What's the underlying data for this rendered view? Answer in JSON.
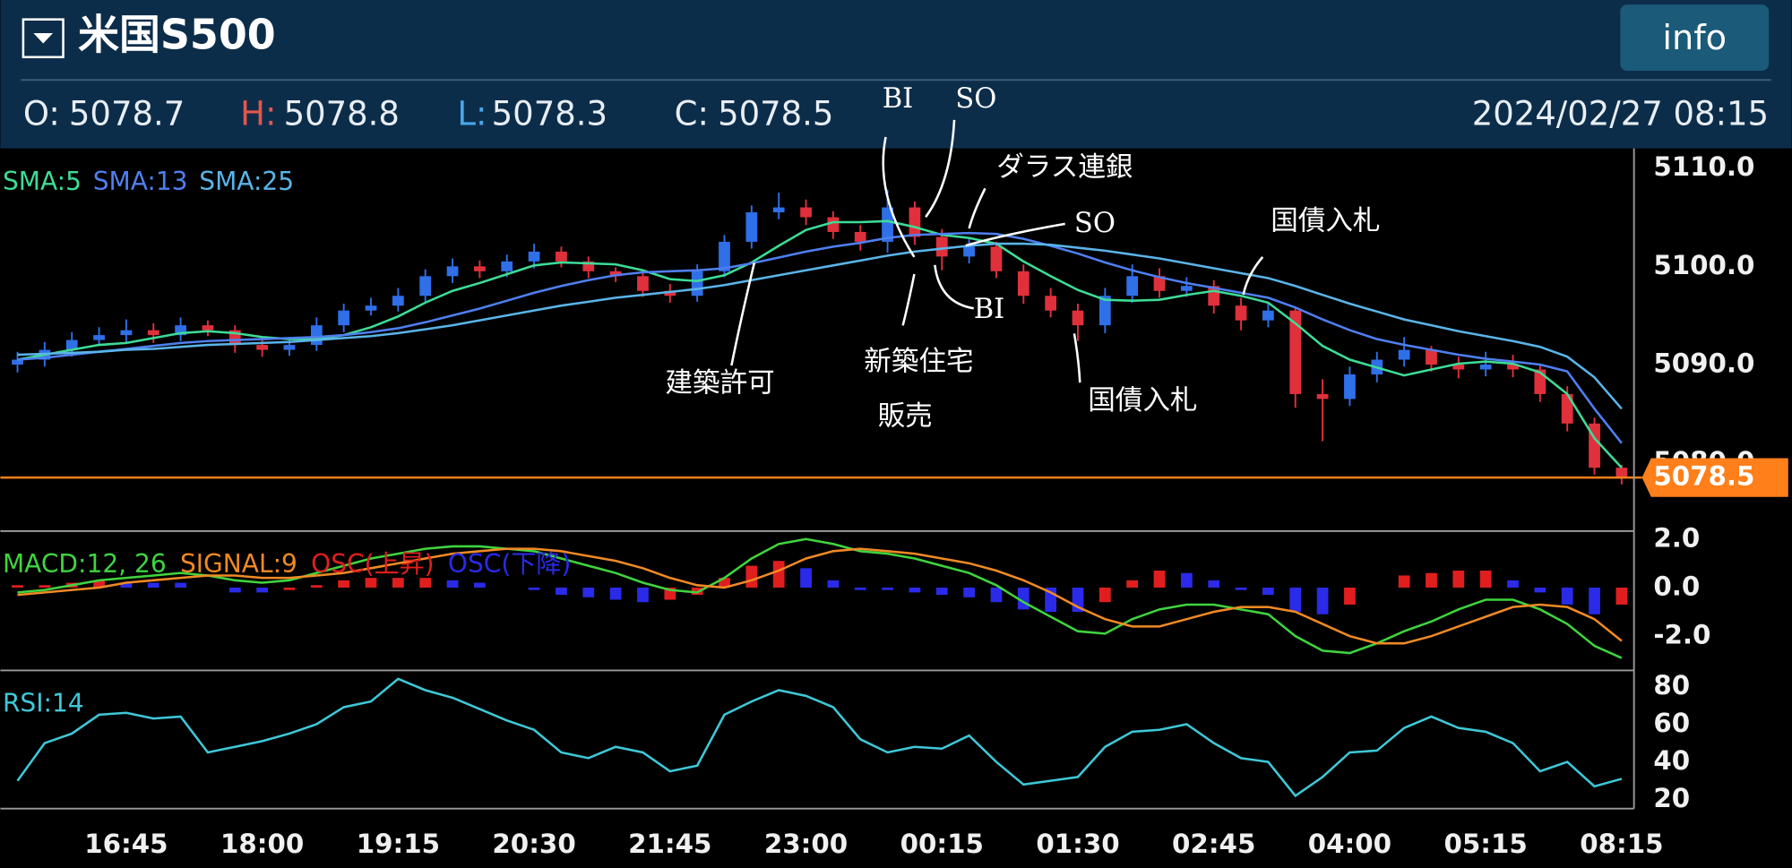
{
  "header": {
    "title": "米国S500",
    "open_label": "O:",
    "open": 5078.7,
    "high_label": "H:",
    "high": 5078.8,
    "low_label": "L:",
    "low": 5078.3,
    "close_label": "C:",
    "close": 5078.5,
    "datetime": "2024/02/27 08:15",
    "button": "info"
  },
  "chart_data": [
    {
      "type": "candlestick",
      "ylim": [
        5073.4,
        5112.0
      ],
      "yticks": [
        {
          "value": 5110,
          "label": "5110.0"
        },
        {
          "value": 5100,
          "label": "5100.0"
        },
        {
          "value": 5090,
          "label": "5090.0"
        },
        {
          "value": 5080,
          "label": "5080.0"
        }
      ],
      "grid": true,
      "up_color": "#2f6fe8",
      "down_color": "#e0303c",
      "last_price": 5078.5,
      "last_price_color": "#ff7f1a",
      "ohlc": {
        "open": [
          5090.0,
          5090.5,
          5091.5,
          5092.5,
          5093.0,
          5093.5,
          5093.0,
          5094.0,
          5093.5,
          5092.0,
          5091.5,
          5092.0,
          5094.0,
          5095.5,
          5096.0,
          5097.0,
          5099.0,
          5100.0,
          5099.5,
          5100.5,
          5101.5,
          5100.5,
          5099.5,
          5099.0,
          5097.5,
          5097.0,
          5099.5,
          5102.5,
          5105.5,
          5106.0,
          5105.0,
          5103.5,
          5102.5,
          5106.0,
          5103.0,
          5101.0,
          5102.0,
          5099.5,
          5097.0,
          5095.5,
          5094.0,
          5097.0,
          5099.0,
          5097.5,
          5098.0,
          5096.0,
          5094.5,
          5095.5,
          5087.0,
          5086.5,
          5089.0,
          5090.5,
          5091.5,
          5090.0,
          5089.5,
          5090.0,
          5089.5,
          5087.0,
          5084.0,
          5079.5
        ],
        "high": [
          5091.3,
          5092.3,
          5093.3,
          5093.8,
          5094.6,
          5094.2,
          5094.8,
          5094.5,
          5094.0,
          5092.7,
          5092.8,
          5094.8,
          5096.2,
          5096.8,
          5097.8,
          5099.7,
          5100.8,
          5100.6,
          5101.2,
          5102.3,
          5102.0,
          5101.0,
          5099.9,
          5099.6,
          5098.2,
          5100.2,
          5103.2,
          5106.2,
          5107.5,
          5106.8,
          5105.6,
          5104.2,
          5107.8,
          5106.6,
          5103.8,
          5102.8,
          5102.5,
          5100.2,
          5097.8,
          5096.2,
          5097.8,
          5100.2,
          5099.8,
          5098.9,
          5098.6,
          5096.8,
          5096.2,
          5095.8,
          5088.5,
          5089.8,
          5091.3,
          5092.8,
          5091.9,
          5090.8,
          5091.3,
          5091.0,
          5090.0,
          5087.8,
          5084.6,
          5079.8
        ],
        "low": [
          5089.2,
          5089.8,
          5090.8,
          5091.9,
          5092.3,
          5092.2,
          5092.4,
          5092.9,
          5091.2,
          5090.8,
          5090.9,
          5091.4,
          5093.3,
          5095.0,
          5095.4,
          5096.4,
          5098.3,
          5098.8,
          5098.9,
          5099.8,
          5099.9,
          5098.8,
          5098.4,
          5096.9,
          5096.3,
          5096.4,
          5098.9,
          5101.8,
          5104.8,
          5104.2,
          5102.8,
          5101.6,
          5101.4,
          5102.2,
          5099.6,
          5100.3,
          5098.8,
          5096.2,
          5094.8,
          5092.4,
          5093.2,
          5096.3,
          5096.8,
          5096.9,
          5095.2,
          5093.5,
          5093.8,
          5085.6,
          5082.2,
          5085.8,
          5088.2,
          5089.8,
          5089.3,
          5088.6,
          5088.8,
          5088.7,
          5086.2,
          5083.2,
          5078.8,
          5077.8
        ],
        "close": [
          5090.5,
          5091.5,
          5092.5,
          5093.0,
          5093.5,
          5093.0,
          5094.0,
          5093.5,
          5092.0,
          5091.5,
          5092.0,
          5094.0,
          5095.5,
          5096.0,
          5097.0,
          5099.0,
          5100.0,
          5099.5,
          5100.5,
          5101.5,
          5100.5,
          5099.5,
          5099.0,
          5097.5,
          5097.0,
          5099.5,
          5102.5,
          5105.5,
          5106.0,
          5105.0,
          5103.5,
          5102.5,
          5106.0,
          5103.0,
          5101.0,
          5102.0,
          5099.5,
          5097.0,
          5095.5,
          5094.0,
          5097.0,
          5099.0,
          5097.5,
          5098.0,
          5096.0,
          5094.5,
          5095.5,
          5087.0,
          5086.5,
          5089.0,
          5090.5,
          5091.5,
          5090.0,
          5089.5,
          5090.0,
          5089.5,
          5087.0,
          5084.0,
          5079.5,
          5078.5
        ]
      },
      "series": [
        {
          "name": "SMA:5",
          "color": "#3ddc97",
          "values": [
            5090.5,
            5091.0,
            5091.5,
            5092.0,
            5092.2,
            5092.7,
            5093.2,
            5093.4,
            5093.2,
            5092.8,
            5092.6,
            5092.6,
            5093.0,
            5093.8,
            5094.9,
            5096.3,
            5097.5,
            5098.3,
            5099.2,
            5100.1,
            5100.4,
            5100.3,
            5100.2,
            5099.6,
            5098.7,
            5098.5,
            5099.1,
            5100.4,
            5102.1,
            5103.7,
            5104.5,
            5104.5,
            5104.6,
            5104.0,
            5103.2,
            5102.9,
            5102.3,
            5100.5,
            5099.0,
            5097.6,
            5096.6,
            5096.5,
            5096.6,
            5097.1,
            5097.5,
            5097.0,
            5096.3,
            5094.2,
            5091.9,
            5090.5,
            5089.7,
            5088.9,
            5089.5,
            5090.1,
            5090.3,
            5090.1,
            5089.2,
            5087.0,
            5082.5,
            5079.5
          ]
        },
        {
          "name": "SMA:13",
          "color": "#4f7ff0",
          "values": [
            5090.5,
            5090.7,
            5091.0,
            5091.3,
            5091.6,
            5091.9,
            5092.2,
            5092.4,
            5092.5,
            5092.6,
            5092.7,
            5092.8,
            5093.0,
            5093.3,
            5093.7,
            5094.3,
            5095.0,
            5095.7,
            5096.5,
            5097.3,
            5098.0,
            5098.6,
            5099.1,
            5099.4,
            5099.5,
            5099.6,
            5099.8,
            5100.3,
            5100.9,
            5101.5,
            5102.0,
            5102.4,
            5102.9,
            5103.2,
            5103.3,
            5103.4,
            5103.3,
            5102.8,
            5102.1,
            5101.3,
            5100.4,
            5099.6,
            5098.9,
            5098.3,
            5097.8,
            5097.3,
            5096.8,
            5095.8,
            5094.6,
            5093.5,
            5092.6,
            5092.0,
            5091.5,
            5091.0,
            5090.6,
            5090.3,
            5090.0,
            5089.3,
            5085.5,
            5082.0
          ]
        },
        {
          "name": "SMA:25",
          "color": "#5ab4e8",
          "values": [
            5091.0,
            5091.1,
            5091.2,
            5091.3,
            5091.5,
            5091.6,
            5091.8,
            5092.0,
            5092.1,
            5092.2,
            5092.3,
            5092.5,
            5092.7,
            5092.9,
            5093.2,
            5093.6,
            5094.0,
            5094.5,
            5095.0,
            5095.5,
            5096.0,
            5096.4,
            5096.8,
            5097.1,
            5097.4,
            5097.7,
            5098.1,
            5098.6,
            5099.1,
            5099.6,
            5100.1,
            5100.6,
            5101.1,
            5101.5,
            5101.8,
            5102.1,
            5102.3,
            5102.3,
            5102.2,
            5101.9,
            5101.6,
            5101.2,
            5100.8,
            5100.3,
            5099.8,
            5099.3,
            5098.8,
            5098.0,
            5097.1,
            5096.2,
            5095.4,
            5094.6,
            5094.0,
            5093.4,
            5092.9,
            5092.4,
            5091.8,
            5090.8,
            5088.7,
            5085.5
          ]
        }
      ],
      "annotations": [
        "BI",
        "SO",
        "ダラス連銀",
        "SO",
        "国債入札",
        "建築許可",
        "新築住宅",
        "販売",
        "BI",
        "国債入札"
      ]
    },
    {
      "type": "macd",
      "ylim": [
        -3.32,
        2.33
      ],
      "yticks": [
        {
          "value": 2,
          "label": "2.0"
        },
        {
          "value": 0,
          "label": "0.0"
        },
        {
          "value": -2,
          "label": "-2.0"
        }
      ],
      "grid": true,
      "series": [
        {
          "name": "MACD:12, 26",
          "color": "#3fd43f",
          "style": "line",
          "values": [
            -0.2,
            -0.1,
            0.1,
            0.3,
            0.4,
            0.5,
            0.6,
            0.5,
            0.3,
            0.2,
            0.3,
            0.6,
            0.9,
            1.2,
            1.4,
            1.6,
            1.7,
            1.7,
            1.6,
            1.5,
            1.2,
            0.9,
            0.6,
            0.2,
            -0.1,
            -0.2,
            0.4,
            1.2,
            1.8,
            2.0,
            1.8,
            1.5,
            1.4,
            1.2,
            0.9,
            0.6,
            0.1,
            -0.6,
            -1.2,
            -1.8,
            -1.9,
            -1.3,
            -0.9,
            -0.7,
            -0.7,
            -0.9,
            -1.1,
            -2.0,
            -2.6,
            -2.7,
            -2.3,
            -1.8,
            -1.4,
            -0.9,
            -0.5,
            -0.5,
            -0.9,
            -1.5,
            -2.4,
            -2.9
          ]
        },
        {
          "name": "SIGNAL:9",
          "color": "#f08a24",
          "style": "line",
          "values": [
            -0.3,
            -0.2,
            -0.1,
            0.0,
            0.2,
            0.3,
            0.4,
            0.5,
            0.5,
            0.4,
            0.4,
            0.5,
            0.6,
            0.8,
            1.0,
            1.2,
            1.4,
            1.5,
            1.6,
            1.6,
            1.5,
            1.3,
            1.1,
            0.8,
            0.4,
            0.1,
            0.0,
            0.3,
            0.7,
            1.2,
            1.5,
            1.6,
            1.5,
            1.4,
            1.2,
            1.0,
            0.7,
            0.3,
            -0.2,
            -0.8,
            -1.3,
            -1.6,
            -1.6,
            -1.3,
            -1.0,
            -0.8,
            -0.8,
            -1.0,
            -1.5,
            -2.0,
            -2.3,
            -2.3,
            -2.0,
            -1.6,
            -1.2,
            -0.8,
            -0.7,
            -0.8,
            -1.3,
            -2.2
          ]
        },
        {
          "name": "OSC(上昇)",
          "color": "#e01e1e",
          "style": "bar",
          "values": [
            0.1,
            0.1,
            0.2,
            0.3,
            null,
            null,
            null,
            null,
            null,
            null,
            -0.1,
            0.1,
            0.3,
            0.4,
            0.4,
            0.4,
            null,
            null,
            null,
            null,
            null,
            null,
            null,
            null,
            -0.5,
            -0.3,
            0.4,
            0.9,
            1.1,
            null,
            null,
            null,
            null,
            null,
            null,
            null,
            null,
            null,
            null,
            null,
            -0.6,
            0.3,
            0.7,
            null,
            null,
            null,
            null,
            null,
            null,
            -0.7,
            0.0,
            0.5,
            0.6,
            0.7,
            0.7,
            null,
            null,
            null,
            null,
            -0.7
          ]
        },
        {
          "name": "OSC(下降)",
          "color": "#2a2ae8",
          "style": "bar",
          "values": [
            null,
            null,
            null,
            null,
            0.2,
            0.2,
            0.2,
            0.0,
            -0.2,
            -0.2,
            null,
            null,
            null,
            null,
            null,
            null,
            0.3,
            0.2,
            0.0,
            -0.1,
            -0.3,
            -0.4,
            -0.5,
            -0.6,
            null,
            null,
            null,
            null,
            null,
            0.8,
            0.3,
            -0.1,
            -0.1,
            -0.2,
            -0.3,
            -0.4,
            -0.6,
            -0.9,
            -1.0,
            -1.0,
            null,
            null,
            null,
            0.6,
            0.3,
            -0.1,
            -0.3,
            -1.0,
            -1.1,
            null,
            null,
            null,
            null,
            null,
            null,
            0.3,
            -0.2,
            -0.7,
            -1.1,
            null
          ]
        }
      ]
    },
    {
      "type": "line",
      "ylim": [
        15.2,
        87.9
      ],
      "yticks": [
        20,
        40,
        60,
        80
      ],
      "grid": true,
      "categories": [
        null,
        null,
        null,
        null,
        "16:45",
        null,
        null,
        null,
        null,
        "18:00",
        null,
        null,
        null,
        null,
        "19:15",
        null,
        null,
        null,
        null,
        "20:30",
        null,
        null,
        null,
        null,
        "21:45",
        null,
        null,
        null,
        null,
        "23:00",
        null,
        null,
        null,
        null,
        "00:15",
        null,
        null,
        null,
        null,
        "01:30",
        null,
        null,
        null,
        null,
        "02:45",
        null,
        null,
        null,
        null,
        "04:00",
        null,
        null,
        null,
        null,
        "05:15",
        null,
        null,
        null,
        null,
        "08:15"
      ],
      "series": [
        {
          "name": "RSI:14",
          "color": "#3ec8d8",
          "style": "line",
          "values": [
            30,
            50,
            55,
            65,
            66,
            63,
            64,
            45,
            48,
            51,
            55,
            60,
            69,
            72,
            84,
            78,
            74,
            68,
            62,
            57,
            45,
            42,
            48,
            45,
            35,
            38,
            65,
            72,
            78,
            75,
            69,
            52,
            45,
            48,
            47,
            54,
            40,
            28,
            30,
            32,
            48,
            56,
            57,
            60,
            50,
            42,
            40,
            22,
            32,
            45,
            46,
            58,
            64,
            58,
            56,
            50,
            35,
            40,
            27,
            31
          ]
        }
      ]
    }
  ]
}
